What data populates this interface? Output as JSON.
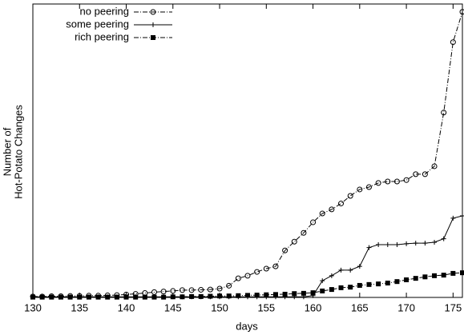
{
  "chart_data": {
    "type": "line",
    "xlabel": "days",
    "ylabel": [
      "Number of",
      "Hot-Potato Changes"
    ],
    "x": [
      130,
      131,
      132,
      133,
      134,
      135,
      136,
      137,
      138,
      139,
      140,
      141,
      142,
      143,
      144,
      145,
      146,
      147,
      148,
      149,
      150,
      151,
      152,
      153,
      154,
      155,
      156,
      157,
      158,
      159,
      160,
      161,
      162,
      163,
      164,
      165,
      166,
      167,
      168,
      169,
      170,
      171,
      172,
      173,
      174,
      175,
      176
    ],
    "xlim": [
      130,
      176
    ],
    "xticks": [
      130,
      135,
      140,
      145,
      150,
      155,
      160,
      165,
      170,
      175
    ],
    "ylim": [
      0,
      100
    ],
    "legend": "top-left",
    "series": [
      {
        "name": "no peering",
        "color": "#000000",
        "marker": "circle",
        "linestyle": "dash-dot",
        "values": [
          0.3,
          0.3,
          0.4,
          0.4,
          0.5,
          0.5,
          0.6,
          0.6,
          0.7,
          0.8,
          1,
          1.2,
          1.5,
          1.8,
          2,
          2.2,
          2.5,
          2.5,
          2.6,
          2.7,
          3,
          4,
          6.5,
          7.4,
          8.7,
          9.8,
          10.6,
          16,
          19,
          22,
          25.6,
          28.6,
          30,
          32,
          34.6,
          36.8,
          37.6,
          39,
          39.5,
          39.5,
          40,
          42,
          42,
          44.7,
          63,
          87,
          97.3
        ]
      },
      {
        "name": "some peering",
        "color": "#000000",
        "marker": "plus",
        "linestyle": "solid",
        "values": [
          0.2,
          0.2,
          0.2,
          0.2,
          0.2,
          0.2,
          0.2,
          0.2,
          0.2,
          0.2,
          0.2,
          0.2,
          0.2,
          0.2,
          0.2,
          0.2,
          0.2,
          0.2,
          0.2,
          0.2,
          0.2,
          0.2,
          0.2,
          0.2,
          0.2,
          0.2,
          0.2,
          0.2,
          0.2,
          0.2,
          0.6,
          5.7,
          7.4,
          9.3,
          9.3,
          10.6,
          17,
          18,
          18,
          18,
          18.3,
          18.5,
          18.5,
          18.8,
          20,
          27,
          27.8
        ]
      },
      {
        "name": "rich peering",
        "color": "#000000",
        "marker": "square",
        "linestyle": "dash-dot",
        "values": [
          0.1,
          0.1,
          0.1,
          0.1,
          0.1,
          0.1,
          0.1,
          0.1,
          0.1,
          0.1,
          0.1,
          0.1,
          0.1,
          0.1,
          0.1,
          0.2,
          0.2,
          0.3,
          0.3,
          0.4,
          0.5,
          0.5,
          0.6,
          0.7,
          0.8,
          0.9,
          1,
          1.1,
          1.3,
          1.4,
          1.6,
          2.2,
          2.7,
          3.3,
          3.5,
          4.1,
          4.4,
          4.6,
          4.9,
          5.4,
          6,
          6.5,
          7,
          7.4,
          7.6,
          8.2,
          8.4
        ]
      }
    ]
  }
}
